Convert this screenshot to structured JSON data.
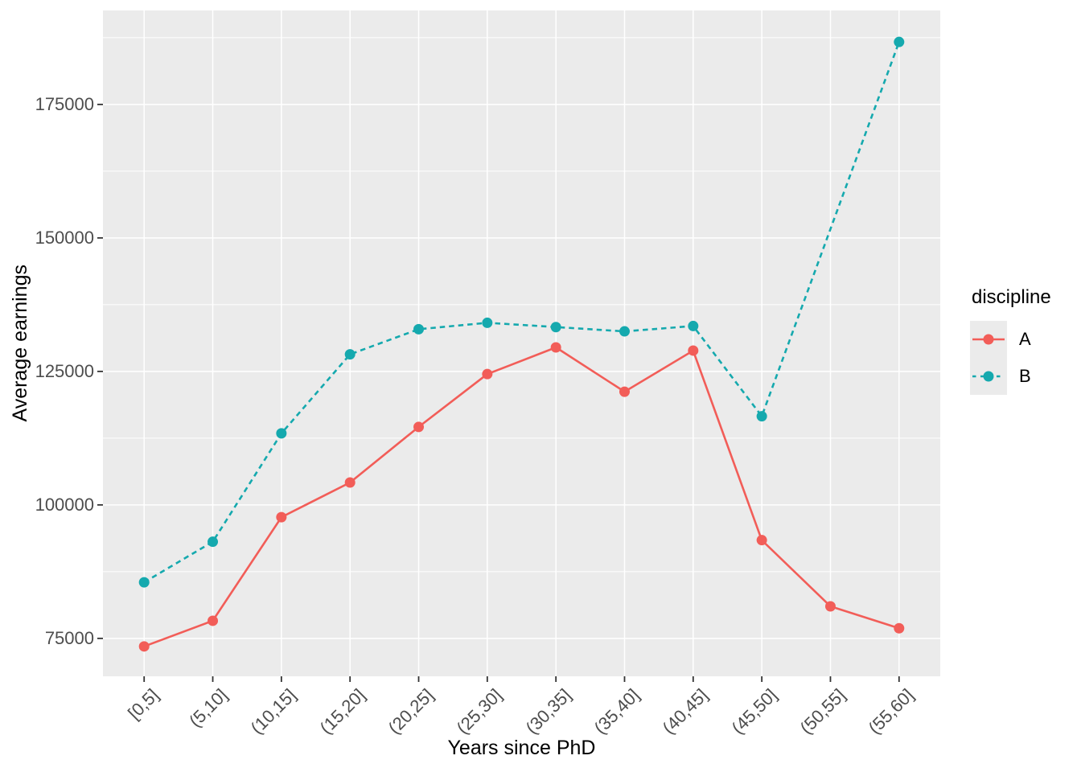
{
  "chart_data": {
    "type": "line",
    "title": "",
    "xlabel": "Years since PhD",
    "ylabel": "Average earnings",
    "categories": [
      "[0,5]",
      "(5,10]",
      "(10,15]",
      "(15,20]",
      "(20,25]",
      "(25,30]",
      "(30,35]",
      "(35,40]",
      "(40,45]",
      "(45,50]",
      "(50,55]",
      "(55,60]"
    ],
    "series": [
      {
        "name": "A",
        "color": "#F25D58",
        "linestyle": "solid",
        "marker": "circle",
        "values": [
          73500,
          78300,
          97700,
          104200,
          114600,
          124500,
          129500,
          121200,
          128900,
          93400,
          81000,
          76900
        ]
      },
      {
        "name": "B",
        "color": "#15A9AE",
        "linestyle": "dashed",
        "marker": "circle",
        "values": [
          85500,
          93100,
          113400,
          128200,
          132900,
          134100,
          133300,
          132500,
          133500,
          116600,
          null,
          186700
        ]
      }
    ],
    "y_ticks": [
      75000,
      100000,
      125000,
      150000,
      175000
    ],
    "y_minor_gridlines": [
      87500,
      112500,
      137500,
      162500,
      187500
    ],
    "ylim": [
      67900,
      192600
    ],
    "grid": "on",
    "legend": {
      "title": "discipline",
      "position": "right"
    },
    "style": {
      "panel_bg": "#EBEBEB",
      "grid_color": "#FFFFFF",
      "tick_color": "#333333",
      "tick_label_color": "#4D4D4D",
      "axis_title_color": "#000000",
      "legend_key_bg": "#EBEBEB"
    }
  }
}
